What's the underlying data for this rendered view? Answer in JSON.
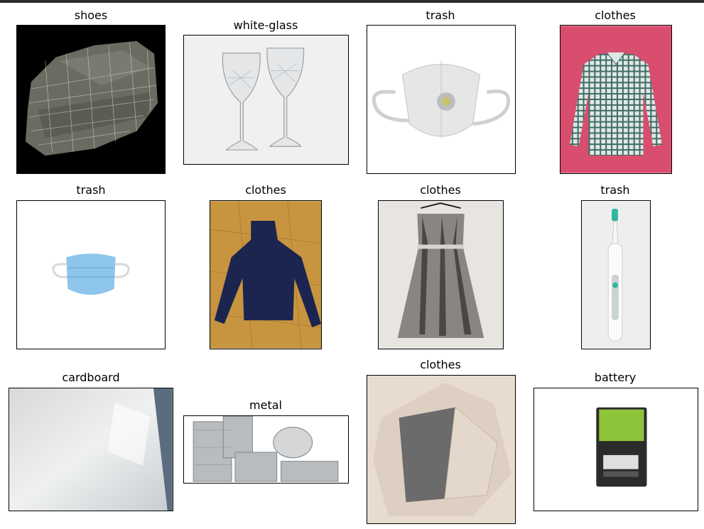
{
  "grid": {
    "items": [
      {
        "label": "shoes",
        "icon": "shoe-mesh-image"
      },
      {
        "label": "white-glass",
        "icon": "wine-glasses-image"
      },
      {
        "label": "trash",
        "icon": "face-mask-image"
      },
      {
        "label": "clothes",
        "icon": "plaid-shirt-image"
      },
      {
        "label": "trash",
        "icon": "surgical-mask-image"
      },
      {
        "label": "clothes",
        "icon": "navy-sweater-image"
      },
      {
        "label": "clothes",
        "icon": "tie-dye-dress-image"
      },
      {
        "label": "trash",
        "icon": "electric-toothbrush-image"
      },
      {
        "label": "cardboard",
        "icon": "white-board-image"
      },
      {
        "label": "metal",
        "icon": "tin-cans-image"
      },
      {
        "label": "clothes",
        "icon": "beige-garment-image"
      },
      {
        "label": "battery",
        "icon": "battery-pack-image"
      }
    ]
  }
}
